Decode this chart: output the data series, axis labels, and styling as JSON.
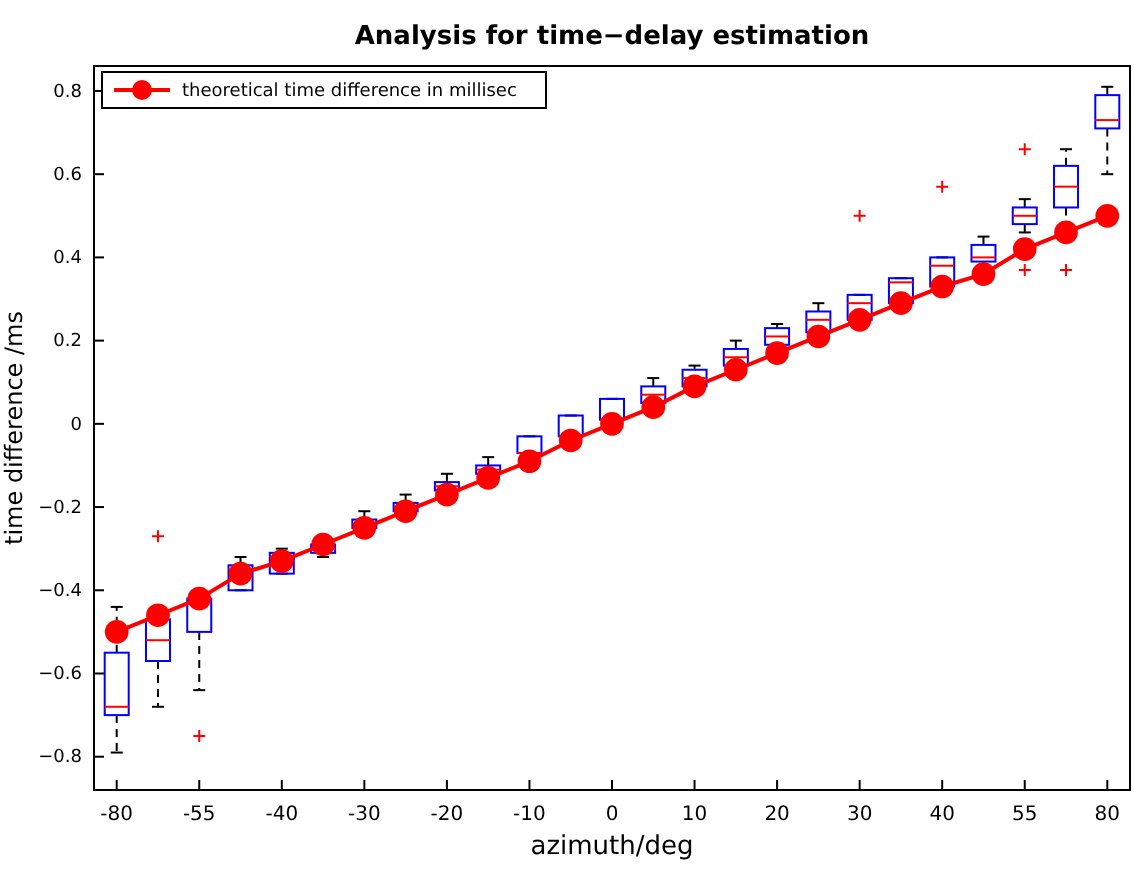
{
  "chart_data": {
    "type": "box",
    "title": "Analysis for time−delay estimation",
    "xlabel": "azimuth/deg",
    "ylabel": "time difference /ms",
    "categories": [
      "-80",
      null,
      "-55",
      null,
      "-40",
      null,
      "-30",
      null,
      "-20",
      null,
      "-10",
      null,
      "0",
      null,
      "10",
      null,
      "20",
      null,
      "30",
      null,
      "40",
      null,
      "55",
      null,
      "80"
    ],
    "ylim": [
      -0.88,
      0.86
    ],
    "yticks": [
      -0.8,
      -0.6,
      -0.4,
      -0.2,
      0,
      0.2,
      0.4,
      0.6,
      0.8
    ],
    "legend": "top left",
    "marker": "circle",
    "line_style": "solid",
    "series": [
      {
        "color": "#0000ff",
        "boxes": [
          {
            "low": -0.79,
            "q1": -0.7,
            "median": -0.68,
            "q3": -0.55,
            "high": -0.44
          },
          {
            "low": -0.68,
            "q1": -0.57,
            "median": -0.52,
            "q3": -0.47,
            "high": -0.47,
            "outliers": [
              -0.27
            ]
          },
          {
            "low": -0.64,
            "q1": -0.5,
            "median": -0.42,
            "q3": -0.42,
            "high": -0.4,
            "outliers": [
              -0.75
            ]
          },
          {
            "low": -0.4,
            "q1": -0.4,
            "median": -0.35,
            "q3": -0.34,
            "high": -0.32
          },
          {
            "low": -0.36,
            "q1": -0.36,
            "median": -0.32,
            "q3": -0.31,
            "high": -0.3
          },
          {
            "low": -0.32,
            "q1": -0.31,
            "median": -0.3,
            "q3": -0.29,
            "high": -0.28
          },
          {
            "low": -0.26,
            "q1": -0.25,
            "median": -0.24,
            "q3": -0.23,
            "high": -0.21
          },
          {
            "low": -0.22,
            "q1": -0.21,
            "median": -0.2,
            "q3": -0.19,
            "high": -0.17
          },
          {
            "low": -0.17,
            "q1": -0.16,
            "median": -0.15,
            "q3": -0.14,
            "high": -0.12
          },
          {
            "low": -0.13,
            "q1": -0.12,
            "median": -0.11,
            "q3": -0.1,
            "high": -0.08
          },
          {
            "low": -0.07,
            "q1": -0.07,
            "median": -0.07,
            "q3": -0.03,
            "high": -0.03
          },
          {
            "low": -0.03,
            "q1": -0.03,
            "median": -0.03,
            "q3": 0.02,
            "high": 0.02
          },
          {
            "low": 0.01,
            "q1": 0.01,
            "median": 0.01,
            "q3": 0.06,
            "high": 0.06
          },
          {
            "low": 0.05,
            "q1": 0.05,
            "median": 0.07,
            "q3": 0.09,
            "high": 0.11
          },
          {
            "low": 0.09,
            "q1": 0.09,
            "median": 0.11,
            "q3": 0.13,
            "high": 0.14
          },
          {
            "low": 0.14,
            "q1": 0.14,
            "median": 0.16,
            "q3": 0.18,
            "high": 0.2
          },
          {
            "low": 0.19,
            "q1": 0.19,
            "median": 0.21,
            "q3": 0.23,
            "high": 0.24
          },
          {
            "low": 0.22,
            "q1": 0.22,
            "median": 0.25,
            "q3": 0.27,
            "high": 0.29
          },
          {
            "low": 0.25,
            "q1": 0.25,
            "median": 0.29,
            "q3": 0.31,
            "high": 0.31,
            "outliers": [
              0.5
            ]
          },
          {
            "low": 0.29,
            "q1": 0.29,
            "median": 0.34,
            "q3": 0.35,
            "high": 0.35
          },
          {
            "low": 0.33,
            "q1": 0.33,
            "median": 0.38,
            "q3": 0.4,
            "high": 0.4,
            "outliers": [
              0.57
            ]
          },
          {
            "low": 0.38,
            "q1": 0.39,
            "median": 0.4,
            "q3": 0.43,
            "high": 0.45
          },
          {
            "low": 0.46,
            "q1": 0.48,
            "median": 0.5,
            "q3": 0.52,
            "high": 0.54,
            "outliers": [
              0.66,
              0.37
            ]
          },
          {
            "low": 0.47,
            "q1": 0.52,
            "median": 0.57,
            "q3": 0.62,
            "high": 0.66,
            "outliers": [
              0.37
            ]
          },
          {
            "low": 0.6,
            "q1": 0.71,
            "median": 0.73,
            "q3": 0.79,
            "high": 0.81
          }
        ]
      },
      {
        "type": "line",
        "name": "theoretical time difference in millisec",
        "color": "#ff0000",
        "values": [
          -0.5,
          -0.46,
          -0.42,
          -0.36,
          -0.33,
          -0.29,
          -0.25,
          -0.21,
          -0.17,
          -0.13,
          -0.09,
          -0.04,
          0,
          0.04,
          0.09,
          0.13,
          0.17,
          0.21,
          0.25,
          0.29,
          0.33,
          0.36,
          0.42,
          0.46,
          0.5
        ]
      }
    ]
  }
}
